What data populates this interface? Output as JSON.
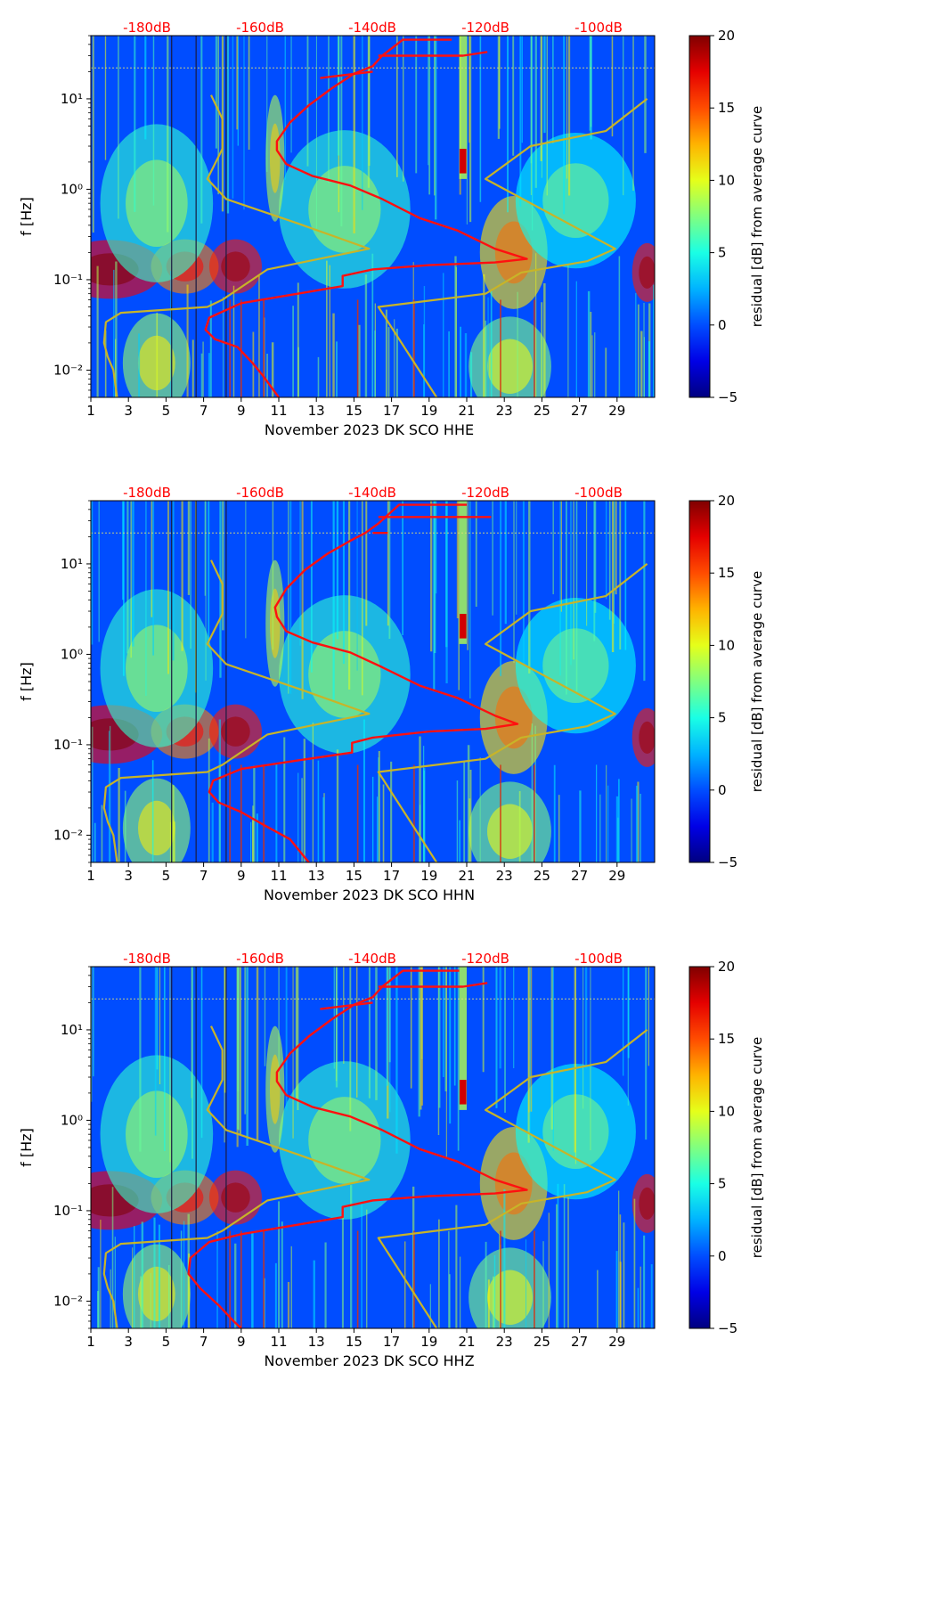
{
  "figure": {
    "background": "#ffffff"
  },
  "chart_data": [
    {
      "type": "heatmap",
      "xlabel": "November 2023 DK SCO  HHE",
      "ylabel": "f [Hz]",
      "x_ticks": [
        "1",
        "3",
        "5",
        "7",
        "9",
        "11",
        "13",
        "15",
        "17",
        "19",
        "21",
        "23",
        "25",
        "27",
        "29"
      ],
      "xlim": [
        1,
        31
      ],
      "ylim": [
        0.005,
        50
      ],
      "yscale": "log",
      "y_ticks": [
        "10⁻²",
        "10⁻¹",
        "10⁰",
        "10¹"
      ],
      "top_axis_ticks": [
        "-180dB",
        "-160dB",
        "-140dB",
        "-120dB",
        "-100dB"
      ],
      "top_axis_color": "#ff0000",
      "colorbar": {
        "label": "residual [dB] from average curve",
        "range": [
          -5,
          20
        ],
        "ticks": [
          "20",
          "15",
          "10",
          "5",
          "0",
          "−5"
        ],
        "colormap": "jet"
      },
      "series": [
        {
          "color": "#ff1010",
          "points": [
            [
              20.2,
              45
            ],
            [
              17.6,
              45
            ],
            [
              16.5,
              30
            ],
            [
              16.0,
              23
            ],
            [
              15.0,
              19
            ],
            [
              13.8,
              13
            ],
            [
              12.6,
              8.5
            ],
            [
              11.6,
              5.5
            ],
            [
              10.9,
              3.4
            ],
            [
              10.9,
              2.7
            ],
            [
              11.4,
              1.9
            ],
            [
              12.8,
              1.4
            ],
            [
              14.8,
              1.1
            ],
            [
              16.5,
              0.78
            ],
            [
              18.5,
              0.48
            ],
            [
              20.5,
              0.35
            ],
            [
              22.5,
              0.22
            ],
            [
              24.2,
              0.17
            ],
            [
              22.5,
              0.155
            ],
            [
              19.0,
              0.145
            ],
            [
              16.0,
              0.13
            ],
            [
              14.4,
              0.11
            ],
            [
              14.4,
              0.085
            ],
            [
              12.0,
              0.07
            ],
            [
              9.0,
              0.055
            ],
            [
              7.3,
              0.038
            ],
            [
              7.1,
              0.028
            ],
            [
              7.6,
              0.022
            ],
            [
              8.8,
              0.018
            ],
            [
              9.6,
              0.012
            ],
            [
              10.1,
              0.009
            ],
            [
              11.0,
              0.005
            ]
          ]
        },
        {
          "color": "#ff1010",
          "points": [
            [
              16.3,
              30
            ],
            [
              20.8,
              30
            ],
            [
              22.1,
              33
            ]
          ]
        },
        {
          "color": "#ff1010",
          "points": [
            [
              16.0,
              20
            ],
            [
              13.2,
              17
            ]
          ]
        },
        {
          "color": "#c8b428",
          "points": [
            [
              2.4,
              0.005
            ],
            [
              2.2,
              0.01
            ],
            [
              1.9,
              0.014
            ],
            [
              1.7,
              0.02
            ],
            [
              1.8,
              0.034
            ],
            [
              2.6,
              0.043
            ],
            [
              7.2,
              0.05
            ],
            [
              8.0,
              0.06
            ],
            [
              10.4,
              0.13
            ],
            [
              15.8,
              0.22
            ],
            [
              12.0,
              0.42
            ],
            [
              8.2,
              0.78
            ],
            [
              7.2,
              1.3
            ],
            [
              8.0,
              2.8
            ],
            [
              8.0,
              6.0
            ],
            [
              7.4,
              11
            ]
          ]
        },
        {
          "color": "#c8b428",
          "points": [
            [
              19.4,
              0.005
            ],
            [
              16.3,
              0.05
            ],
            [
              22.0,
              0.07
            ],
            [
              23.9,
              0.12
            ],
            [
              27.4,
              0.16
            ],
            [
              28.9,
              0.22
            ],
            [
              22.0,
              1.3
            ],
            [
              24.4,
              3.0
            ],
            [
              28.4,
              4.4
            ],
            [
              30.6,
              10.0
            ]
          ]
        }
      ]
    },
    {
      "type": "heatmap",
      "xlabel": "November 2023 DK SCO  HHN",
      "ylabel": "f [Hz]",
      "x_ticks": [
        "1",
        "3",
        "5",
        "7",
        "9",
        "11",
        "13",
        "15",
        "17",
        "19",
        "21",
        "23",
        "25",
        "27",
        "29"
      ],
      "xlim": [
        1,
        31
      ],
      "ylim": [
        0.005,
        50
      ],
      "yscale": "log",
      "y_ticks": [
        "10⁻²",
        "10⁻¹",
        "10⁰",
        "10¹"
      ],
      "top_axis_ticks": [
        "-180dB",
        "-160dB",
        "-140dB",
        "-120dB",
        "-100dB"
      ],
      "top_axis_color": "#ff0000",
      "colorbar": {
        "label": "residual [dB] from average curve",
        "range": [
          -5,
          20
        ],
        "ticks": [
          "20",
          "15",
          "10",
          "5",
          "0",
          "−5"
        ],
        "colormap": "jet"
      },
      "series": [
        {
          "color": "#ff1010",
          "points": [
            [
              21.0,
              45
            ],
            [
              17.4,
              45
            ],
            [
              16.3,
              28
            ],
            [
              15.6,
              22
            ],
            [
              14.8,
              18
            ],
            [
              13.6,
              13
            ],
            [
              12.4,
              8.6
            ],
            [
              11.4,
              5.3
            ],
            [
              10.8,
              3.3
            ],
            [
              10.9,
              2.6
            ],
            [
              11.4,
              1.8
            ],
            [
              12.8,
              1.35
            ],
            [
              14.8,
              1.05
            ],
            [
              16.5,
              0.72
            ],
            [
              18.5,
              0.45
            ],
            [
              20.5,
              0.33
            ],
            [
              22.5,
              0.21
            ],
            [
              23.7,
              0.17
            ],
            [
              22.0,
              0.15
            ],
            [
              19.0,
              0.14
            ],
            [
              16.0,
              0.12
            ],
            [
              14.9,
              0.105
            ],
            [
              14.9,
              0.082
            ],
            [
              12.2,
              0.068
            ],
            [
              9.0,
              0.054
            ],
            [
              7.5,
              0.04
            ],
            [
              7.3,
              0.03
            ],
            [
              7.8,
              0.023
            ],
            [
              9.0,
              0.018
            ],
            [
              10.2,
              0.013
            ],
            [
              11.6,
              0.009
            ],
            [
              12.6,
              0.005
            ]
          ]
        },
        {
          "color": "#ff1010",
          "points": [
            [
              16.3,
              33
            ],
            [
              20.8,
              33
            ],
            [
              22.3,
              33
            ]
          ]
        },
        {
          "color": "#ff1010",
          "points": [
            [
              16.0,
              22
            ],
            [
              16.8,
              22
            ]
          ]
        },
        {
          "color": "#c8b428",
          "points": [
            [
              2.4,
              0.005
            ],
            [
              2.2,
              0.01
            ],
            [
              1.9,
              0.014
            ],
            [
              1.7,
              0.02
            ],
            [
              1.8,
              0.034
            ],
            [
              2.6,
              0.043
            ],
            [
              7.2,
              0.05
            ],
            [
              8.0,
              0.06
            ],
            [
              10.4,
              0.13
            ],
            [
              15.8,
              0.22
            ],
            [
              12.0,
              0.42
            ],
            [
              8.2,
              0.78
            ],
            [
              7.2,
              1.3
            ],
            [
              8.0,
              2.8
            ],
            [
              8.0,
              6.0
            ],
            [
              7.4,
              11
            ]
          ]
        },
        {
          "color": "#c8b428",
          "points": [
            [
              19.4,
              0.005
            ],
            [
              16.3,
              0.05
            ],
            [
              22.0,
              0.07
            ],
            [
              23.9,
              0.12
            ],
            [
              27.4,
              0.16
            ],
            [
              28.9,
              0.22
            ],
            [
              22.0,
              1.3
            ],
            [
              24.4,
              3.0
            ],
            [
              28.4,
              4.4
            ],
            [
              30.6,
              10.0
            ]
          ]
        }
      ]
    },
    {
      "type": "heatmap",
      "xlabel": "November 2023 DK SCO  HHZ",
      "ylabel": "f [Hz]",
      "x_ticks": [
        "1",
        "3",
        "5",
        "7",
        "9",
        "11",
        "13",
        "15",
        "17",
        "19",
        "21",
        "23",
        "25",
        "27",
        "29"
      ],
      "xlim": [
        1,
        31
      ],
      "ylim": [
        0.005,
        50
      ],
      "yscale": "log",
      "y_ticks": [
        "10⁻²",
        "10⁻¹",
        "10⁰",
        "10¹"
      ],
      "top_axis_ticks": [
        "-180dB",
        "-160dB",
        "-140dB",
        "-120dB",
        "-100dB"
      ],
      "top_axis_color": "#ff0000",
      "colorbar": {
        "label": "residual [dB] from average curve",
        "range": [
          -5,
          20
        ],
        "ticks": [
          "20",
          "15",
          "10",
          "5",
          "0",
          "−5"
        ],
        "colormap": "jet"
      },
      "series": [
        {
          "color": "#ff1010",
          "points": [
            [
              20.6,
              45
            ],
            [
              17.6,
              45
            ],
            [
              16.5,
              30
            ],
            [
              16.0,
              23
            ],
            [
              15.0,
              19
            ],
            [
              13.8,
              13
            ],
            [
              12.6,
              8.5
            ],
            [
              11.6,
              5.5
            ],
            [
              10.9,
              3.4
            ],
            [
              10.9,
              2.7
            ],
            [
              11.4,
              1.9
            ],
            [
              12.8,
              1.4
            ],
            [
              14.8,
              1.1
            ],
            [
              16.5,
              0.78
            ],
            [
              18.5,
              0.48
            ],
            [
              20.5,
              0.35
            ],
            [
              22.5,
              0.22
            ],
            [
              24.2,
              0.17
            ],
            [
              22.5,
              0.155
            ],
            [
              19.0,
              0.145
            ],
            [
              16.0,
              0.13
            ],
            [
              14.4,
              0.11
            ],
            [
              14.4,
              0.085
            ],
            [
              12.0,
              0.07
            ],
            [
              9.0,
              0.055
            ],
            [
              7.3,
              0.045
            ],
            [
              6.3,
              0.03
            ],
            [
              6.2,
              0.02
            ],
            [
              6.8,
              0.014
            ],
            [
              7.8,
              0.009
            ],
            [
              8.6,
              0.006
            ],
            [
              9.0,
              0.005
            ]
          ]
        },
        {
          "color": "#ff1010",
          "points": [
            [
              16.3,
              30
            ],
            [
              20.8,
              30
            ],
            [
              22.1,
              33
            ]
          ]
        },
        {
          "color": "#ff1010",
          "points": [
            [
              16.0,
              20
            ],
            [
              13.2,
              17
            ]
          ]
        },
        {
          "color": "#c8b428",
          "points": [
            [
              2.4,
              0.005
            ],
            [
              2.2,
              0.01
            ],
            [
              1.9,
              0.014
            ],
            [
              1.7,
              0.02
            ],
            [
              1.8,
              0.034
            ],
            [
              2.6,
              0.043
            ],
            [
              7.2,
              0.05
            ],
            [
              8.0,
              0.06
            ],
            [
              10.4,
              0.13
            ],
            [
              15.8,
              0.22
            ],
            [
              12.0,
              0.42
            ],
            [
              8.2,
              0.78
            ],
            [
              7.2,
              1.3
            ],
            [
              8.0,
              2.8
            ],
            [
              8.0,
              6.0
            ],
            [
              7.4,
              11
            ]
          ]
        },
        {
          "color": "#c8b428",
          "points": [
            [
              19.4,
              0.005
            ],
            [
              16.3,
              0.05
            ],
            [
              22.0,
              0.07
            ],
            [
              23.9,
              0.12
            ],
            [
              27.4,
              0.16
            ],
            [
              28.9,
              0.22
            ],
            [
              22.0,
              1.3
            ],
            [
              24.4,
              3.0
            ],
            [
              28.4,
              4.4
            ],
            [
              30.6,
              10.0
            ]
          ]
        }
      ]
    }
  ]
}
